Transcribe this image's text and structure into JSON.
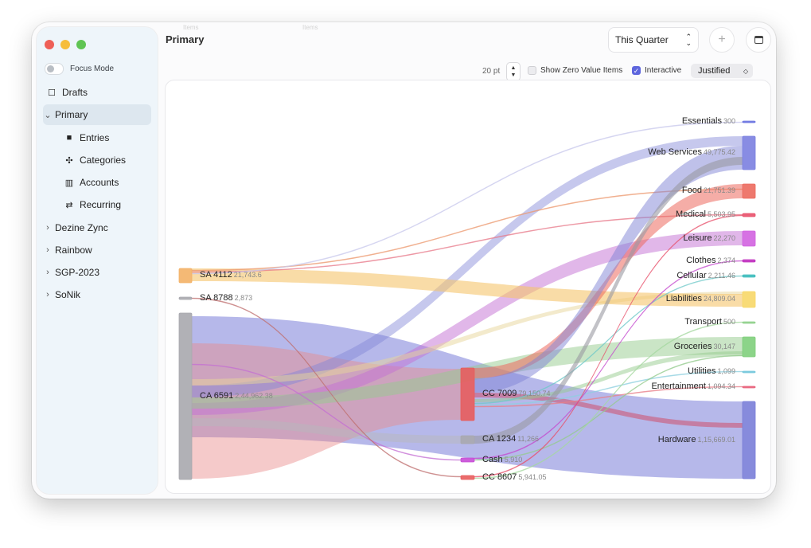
{
  "window": {
    "title": "Primary",
    "ghost_tabs": [
      "Items",
      "Items"
    ]
  },
  "sidebar": {
    "focus_mode_label": "Focus Mode",
    "items": [
      {
        "label": "Drafts",
        "icon": "square-icon"
      },
      {
        "label": "Primary",
        "expanded": true,
        "selected": true
      },
      {
        "label": "Entries",
        "icon": "book-icon"
      },
      {
        "label": "Categories",
        "icon": "categories-icon"
      },
      {
        "label": "Accounts",
        "icon": "bank-icon"
      },
      {
        "label": "Recurring",
        "icon": "repeat-icon"
      },
      {
        "label": "Dezine Zync"
      },
      {
        "label": "Rainbow"
      },
      {
        "label": "SGP-2023"
      },
      {
        "label": "SoNik"
      }
    ]
  },
  "toolbar": {
    "period": "This Quarter",
    "add_label": "+",
    "node_width_value": "20 pt",
    "show_zero_label": "Show Zero Value Items",
    "show_zero_checked": false,
    "interactive_label": "Interactive",
    "interactive_checked": true,
    "alignment": "Justified"
  },
  "colors": {
    "accent": "#5e66dd",
    "neutral": "#a8a8ae"
  },
  "chart_data": {
    "type": "sankey",
    "sources": [
      {
        "name": "SA 4112",
        "value_label": "21,743.6",
        "value": 21743.6,
        "color": "#f3b166"
      },
      {
        "name": "SA 8788",
        "value_label": "2,873",
        "value": 2873,
        "color": "#a8a8ae"
      },
      {
        "name": "CA 6591",
        "value_label": "2,44,962.38",
        "value": 244962.38,
        "color": "#a8a8ae"
      }
    ],
    "intermediates": [
      {
        "name": "CC 7009",
        "value_label": "79,150.74",
        "value": 79150.74,
        "color": "#e85c5c"
      },
      {
        "name": "CA 1234",
        "value_label": "11,266",
        "value": 11266,
        "color": "#a8a8ae"
      },
      {
        "name": "Cash",
        "value_label": "5,910",
        "value": 5910,
        "color": "#c74bd6"
      },
      {
        "name": "CC 8607",
        "value_label": "5,941.05",
        "value": 5941.05,
        "color": "#e85c5c"
      }
    ],
    "targets": [
      {
        "name": "Essentials",
        "value_label": "300",
        "value": 300,
        "color": "#6a73e0"
      },
      {
        "name": "Web Services",
        "value_label": "49,775.42",
        "value": 49775.42,
        "color": "#7b80e0"
      },
      {
        "name": "Food",
        "value_label": "21,751.39",
        "value": 21751.39,
        "color": "#ec6a5e"
      },
      {
        "name": "Medical",
        "value_label": "5,503.95",
        "value": 5503.95,
        "color": "#e8506a"
      },
      {
        "name": "Leisure",
        "value_label": "22,270",
        "value": 22270,
        "color": "#d263e0"
      },
      {
        "name": "Clothes",
        "value_label": "2,374",
        "value": 2374,
        "color": "#c02fbf"
      },
      {
        "name": "Cellular",
        "value_label": "2,211.46",
        "value": 2211.46,
        "color": "#3dbdbd"
      },
      {
        "name": "Liabilities",
        "value_label": "24,809.04",
        "value": 24809.04,
        "color": "#f7d768"
      },
      {
        "name": "Transport",
        "value_label": "500",
        "value": 500,
        "color": "#8fd08a"
      },
      {
        "name": "Groceries",
        "value_label": "30,147",
        "value": 30147,
        "color": "#80cf7c"
      },
      {
        "name": "Utilities",
        "value_label": "1,099",
        "value": 1099,
        "color": "#74c7dc"
      },
      {
        "name": "Entertainment",
        "value_label": "1,094.34",
        "value": 1094.34,
        "color": "#e8607a"
      },
      {
        "name": "Hardware",
        "value_label": "1,15,669.01",
        "value": 115669.01,
        "color": "#7a7ed8"
      }
    ],
    "links": [
      {
        "source": "CA 6591",
        "target": "Hardware",
        "color": "#7a7ed8",
        "weight": 3
      },
      {
        "source": "CA 6591",
        "target": "CC 7009",
        "color": "#e88a8a",
        "weight": 3
      },
      {
        "source": "CA 6591",
        "target": "Leisure",
        "color": "#c46fd3",
        "weight": 2
      },
      {
        "source": "CA 6591",
        "target": "Groceries",
        "color": "#95cc8e",
        "weight": 2
      },
      {
        "source": "CA 6591",
        "target": "Web Services",
        "color": "#8084d6",
        "weight": 2
      },
      {
        "source": "CA 6591",
        "target": "CA 1234",
        "color": "#b8b8bc",
        "weight": 2
      },
      {
        "source": "CA 6591",
        "target": "Liabilities",
        "color": "#e8d59a",
        "weight": 1
      },
      {
        "source": "CA 6591",
        "target": "Cash",
        "color": "#c46fd3",
        "weight": 0
      },
      {
        "source": "SA 4112",
        "target": "Liabilities",
        "color": "#f5c46c",
        "weight": 2
      },
      {
        "source": "SA 4112",
        "target": "Food",
        "color": "#ec9a70",
        "weight": 0
      },
      {
        "source": "SA 4112",
        "target": "Medical",
        "color": "#e87a8a",
        "weight": 0
      },
      {
        "source": "SA 4112",
        "target": "Essentials",
        "color": "#c9c9ec",
        "weight": 0
      },
      {
        "source": "SA 8788",
        "target": "CC 8607",
        "color": "#c07070",
        "weight": 0
      },
      {
        "source": "CC 7009",
        "target": "Food",
        "color": "#ec6a5e",
        "weight": 2
      },
      {
        "source": "CC 7009",
        "target": "Web Services",
        "color": "#8084d6",
        "weight": 2
      },
      {
        "source": "CC 7009",
        "target": "Hardware",
        "color": "#d04e6a",
        "weight": 1
      },
      {
        "source": "CC 7009",
        "target": "Groceries",
        "color": "#95cc8e",
        "weight": 0
      },
      {
        "source": "CC 7009",
        "target": "Cellular",
        "color": "#6fc9c9",
        "weight": 0
      },
      {
        "source": "CC 7009",
        "target": "Utilities",
        "color": "#8fd0e0",
        "weight": 0
      },
      {
        "source": "CC 7009",
        "target": "Entertainment",
        "color": "#e8808a",
        "weight": 0
      },
      {
        "source": "CA 1234",
        "target": "Web Services",
        "color": "#9a9aa2",
        "weight": 1
      },
      {
        "source": "Cash",
        "target": "Clothes",
        "color": "#c44bcf",
        "weight": 0
      },
      {
        "source": "Cash",
        "target": "Groceries",
        "color": "#95cc8e",
        "weight": 0
      },
      {
        "source": "CC 8607",
        "target": "Medical",
        "color": "#e8506a",
        "weight": 0
      },
      {
        "source": "CC 8607",
        "target": "Transport",
        "color": "#a5d9a0",
        "weight": 0
      }
    ]
  }
}
